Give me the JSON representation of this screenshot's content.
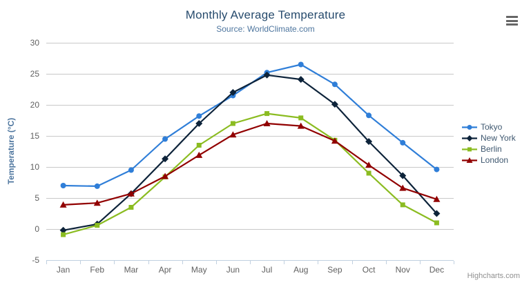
{
  "chart_data": {
    "type": "line",
    "title": "Monthly Average Temperature",
    "subtitle": "Source: WorldClimate.com",
    "categories": [
      "Jan",
      "Feb",
      "Mar",
      "Apr",
      "May",
      "Jun",
      "Jul",
      "Aug",
      "Sep",
      "Oct",
      "Nov",
      "Dec"
    ],
    "xlabel": "",
    "ylabel": "Temperature (°C)",
    "ylim": [
      -5,
      30
    ],
    "yticks": [
      -5,
      0,
      5,
      10,
      15,
      20,
      25,
      30
    ],
    "grid": true,
    "legend_position": "right",
    "series": [
      {
        "name": "Tokyo",
        "color": "#2f7ed8",
        "marker": "circle",
        "values": [
          7.0,
          6.9,
          9.5,
          14.5,
          18.2,
          21.5,
          25.2,
          26.5,
          23.3,
          18.3,
          13.9,
          9.6
        ]
      },
      {
        "name": "New York",
        "color": "#0d233a",
        "marker": "diamond",
        "values": [
          -0.2,
          0.8,
          5.7,
          11.3,
          17.0,
          22.0,
          24.8,
          24.1,
          20.1,
          14.1,
          8.6,
          2.5
        ]
      },
      {
        "name": "Berlin",
        "color": "#8bbc21",
        "marker": "square",
        "values": [
          -0.9,
          0.6,
          3.5,
          8.4,
          13.5,
          17.0,
          18.6,
          17.9,
          14.3,
          9.0,
          3.9,
          1.0
        ]
      },
      {
        "name": "London",
        "color": "#910000",
        "marker": "triangle",
        "values": [
          3.9,
          4.2,
          5.7,
          8.5,
          11.9,
          15.2,
          17.0,
          16.6,
          14.2,
          10.3,
          6.6,
          4.8
        ]
      }
    ]
  },
  "credits": {
    "label": "Highcharts.com"
  },
  "icons": {
    "context_menu": "hamburger-menu-icon"
  },
  "colors": {
    "title": "#274b6d",
    "subtitle": "#4d759e",
    "axis_title": "#4d759e",
    "axis_labels": "#606060",
    "gridline": "#c8c8c8",
    "axis_line": "#c0d0e0",
    "legend_text": "#3e576f",
    "credits": "#909090",
    "context_menu": "#666666",
    "background": "#ffffff"
  }
}
